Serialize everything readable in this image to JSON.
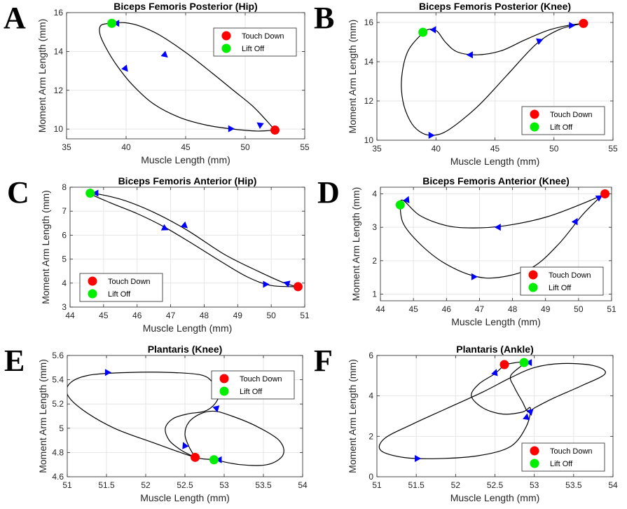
{
  "marker_colors": {
    "touch_down": "#ff0000",
    "lift_off": "#00ee00",
    "arrow": "#0000ff",
    "curve": "#000000"
  },
  "chart_data": [
    {
      "panel": "A",
      "type": "line",
      "title": "Biceps Femoris Posterior (Hip)",
      "xlabel": "Muscle Length (mm)",
      "ylabel": "Moment Arm Length (mm)",
      "xlim": [
        35,
        55
      ],
      "ylim": [
        9.5,
        16
      ],
      "xticks": [
        35,
        40,
        45,
        50,
        55
      ],
      "yticks": [
        10,
        12,
        14,
        16
      ],
      "grid": true,
      "legend_position": "top-right",
      "legend": [
        "Touch Down",
        "Lift Off"
      ],
      "touch_down": [
        52.5,
        9.95
      ],
      "lift_off": [
        38.8,
        15.45
      ],
      "curve": [
        [
          52.5,
          9.95
        ],
        [
          51.7,
          10.5
        ],
        [
          50.6,
          11.2
        ],
        [
          49.0,
          12.0
        ],
        [
          47.2,
          12.9
        ],
        [
          45.0,
          13.95
        ],
        [
          42.8,
          14.85
        ],
        [
          41.2,
          15.3
        ],
        [
          39.9,
          15.48
        ],
        [
          38.8,
          15.45
        ],
        [
          37.9,
          15.35
        ],
        [
          37.8,
          14.9
        ],
        [
          38.3,
          14.2
        ],
        [
          39.2,
          13.3
        ],
        [
          40.5,
          12.3
        ],
        [
          42.3,
          11.3
        ],
        [
          44.5,
          10.6
        ],
        [
          46.8,
          10.2
        ],
        [
          49.0,
          10.0
        ],
        [
          51.0,
          9.9
        ],
        [
          52.5,
          9.95
        ]
      ],
      "arrows": [
        [
          39.3,
          15.45,
          -1,
          0
        ],
        [
          43.2,
          13.85,
          0.7,
          -0.6
        ],
        [
          39.9,
          13.15,
          0.6,
          -0.75
        ],
        [
          48.7,
          10.02,
          1,
          0
        ],
        [
          51.3,
          10.2,
          -0.7,
          0.5
        ]
      ]
    },
    {
      "panel": "B",
      "type": "line",
      "title": "Biceps Femoris Posterior (Knee)",
      "xlabel": "Muscle Length (mm)",
      "ylabel": "Moment Arm Length (mm)",
      "xlim": [
        35,
        55
      ],
      "ylim": [
        10,
        16.5
      ],
      "xticks": [
        35,
        40,
        45,
        50,
        55
      ],
      "yticks": [
        10,
        12,
        14,
        16
      ],
      "grid": true,
      "legend_position": "bottom-right",
      "legend": [
        "Touch Down",
        "Lift Off"
      ],
      "touch_down": [
        52.5,
        15.95
      ],
      "lift_off": [
        38.9,
        15.5
      ],
      "curve": [
        [
          52.5,
          15.95
        ],
        [
          51.2,
          15.85
        ],
        [
          49.5,
          15.6
        ],
        [
          47.5,
          15.1
        ],
        [
          45.5,
          14.55
        ],
        [
          43.5,
          14.35
        ],
        [
          41.8,
          14.5
        ],
        [
          40.8,
          15.0
        ],
        [
          40.1,
          15.55
        ],
        [
          39.4,
          15.65
        ],
        [
          38.7,
          15.35
        ],
        [
          37.6,
          14.5
        ],
        [
          37.1,
          13.2
        ],
        [
          37.2,
          12.0
        ],
        [
          37.8,
          11.0
        ],
        [
          38.6,
          10.45
        ],
        [
          39.6,
          10.25
        ],
        [
          41.0,
          10.5
        ],
        [
          43.5,
          11.7
        ],
        [
          46.0,
          13.3
        ],
        [
          48.5,
          14.9
        ],
        [
          50.5,
          15.65
        ],
        [
          52.5,
          15.95
        ]
      ],
      "arrows": [
        [
          51.4,
          15.85,
          1,
          0
        ],
        [
          48.7,
          15.05,
          1,
          0.4
        ],
        [
          43.0,
          14.35,
          -1,
          0
        ],
        [
          39.8,
          15.6,
          0.5,
          0.8
        ],
        [
          39.5,
          10.25,
          1,
          0
        ]
      ]
    },
    {
      "panel": "C",
      "type": "line",
      "title": "Biceps Femoris Anterior (Hip)",
      "xlabel": "Muscle Length (mm)",
      "ylabel": "Moment Arm Length (mm)",
      "xlim": [
        44,
        51
      ],
      "ylim": [
        3,
        8
      ],
      "xticks": [
        44,
        45,
        46,
        47,
        48,
        49,
        50,
        51
      ],
      "yticks": [
        3,
        4,
        5,
        6,
        7,
        8
      ],
      "grid": true,
      "legend_position": "bottom-left",
      "legend": [
        "Touch Down",
        "Lift Off"
      ],
      "touch_down": [
        50.8,
        3.85
      ],
      "lift_off": [
        44.6,
        7.75
      ],
      "curve": [
        [
          50.8,
          3.85
        ],
        [
          50.4,
          4.0
        ],
        [
          49.6,
          4.5
        ],
        [
          48.6,
          5.2
        ],
        [
          47.5,
          6.2
        ],
        [
          46.5,
          6.95
        ],
        [
          45.5,
          7.5
        ],
        [
          44.6,
          7.75
        ],
        [
          45.2,
          7.35
        ],
        [
          46.0,
          6.9
        ],
        [
          46.8,
          6.35
        ],
        [
          47.7,
          5.6
        ],
        [
          48.5,
          4.9
        ],
        [
          49.3,
          4.25
        ],
        [
          50.0,
          3.9
        ],
        [
          50.8,
          3.85
        ]
      ],
      "arrows": [
        [
          44.8,
          7.75,
          -1,
          0
        ],
        [
          47.4,
          6.42,
          0.7,
          -0.6
        ],
        [
          46.8,
          6.3,
          1,
          -0.5
        ],
        [
          49.8,
          3.95,
          1,
          0
        ],
        [
          50.5,
          3.98,
          -1,
          0.3
        ]
      ]
    },
    {
      "panel": "D",
      "type": "line",
      "title": "Biceps Femoris Anterior (Knee)",
      "xlabel": "Muscle Length (mm)",
      "ylabel": "Moment Arm Length (mm)",
      "xlim": [
        44,
        51
      ],
      "ylim": [
        0.8,
        4.2
      ],
      "xticks": [
        44,
        45,
        46,
        47,
        48,
        49,
        50,
        51
      ],
      "yticks": [
        1,
        2,
        3,
        4
      ],
      "grid": true,
      "legend_position": "bottom-right",
      "legend": [
        "Touch Down",
        "Lift Off"
      ],
      "touch_down": [
        50.8,
        4.0
      ],
      "lift_off": [
        44.6,
        3.67
      ],
      "curve": [
        [
          50.8,
          4.0
        ],
        [
          50.1,
          3.7
        ],
        [
          49.0,
          3.3
        ],
        [
          47.8,
          3.05
        ],
        [
          46.8,
          2.98
        ],
        [
          46.0,
          3.05
        ],
        [
          45.2,
          3.35
        ],
        [
          44.7,
          3.8
        ],
        [
          44.6,
          3.67
        ],
        [
          44.7,
          3.1
        ],
        [
          45.2,
          2.5
        ],
        [
          45.9,
          1.95
        ],
        [
          46.8,
          1.55
        ],
        [
          47.6,
          1.5
        ],
        [
          48.6,
          1.8
        ],
        [
          49.4,
          2.5
        ],
        [
          50.1,
          3.35
        ],
        [
          50.6,
          3.85
        ],
        [
          50.8,
          4.0
        ]
      ],
      "arrows": [
        [
          50.6,
          3.88,
          1,
          0.6
        ],
        [
          47.6,
          3.0,
          -1,
          0
        ],
        [
          44.8,
          3.8,
          0.4,
          0.9
        ],
        [
          46.8,
          1.52,
          1,
          0
        ],
        [
          49.9,
          3.15,
          0.5,
          0.9
        ]
      ]
    },
    {
      "panel": "E",
      "type": "line",
      "title": "Plantaris (Knee)",
      "xlabel": "Muscle Length (mm)",
      "ylabel": "Moment Arm Length (mm)",
      "xlim": [
        51,
        54
      ],
      "ylim": [
        4.6,
        5.6
      ],
      "xticks": [
        51,
        51.5,
        52,
        52.5,
        53,
        53.5,
        54
      ],
      "yticks": [
        4.6,
        4.8,
        5.0,
        5.2,
        5.4,
        5.6
      ],
      "grid": true,
      "legend_position": "top-right",
      "legend": [
        "Touch Down",
        "Lift Off"
      ],
      "touch_down": [
        52.63,
        4.76
      ],
      "lift_off": [
        52.87,
        4.74
      ],
      "curve": [
        [
          52.63,
          4.76
        ],
        [
          52.45,
          4.82
        ],
        [
          52.3,
          4.9
        ],
        [
          52.25,
          5.0
        ],
        [
          52.35,
          5.08
        ],
        [
          52.55,
          5.12
        ],
        [
          52.75,
          5.14
        ],
        [
          52.88,
          5.2
        ],
        [
          52.93,
          5.28
        ],
        [
          52.85,
          5.38
        ],
        [
          52.7,
          5.44
        ],
        [
          52.3,
          5.46
        ],
        [
          51.8,
          5.46
        ],
        [
          51.3,
          5.44
        ],
        [
          51.05,
          5.38
        ],
        [
          51.0,
          5.28
        ],
        [
          51.2,
          5.15
        ],
        [
          51.6,
          5.0
        ],
        [
          52.1,
          4.88
        ],
        [
          52.63,
          4.76
        ],
        [
          52.87,
          4.74
        ],
        [
          53.2,
          4.7
        ],
        [
          53.55,
          4.7
        ],
        [
          53.75,
          4.78
        ],
        [
          53.7,
          4.9
        ],
        [
          53.4,
          5.02
        ],
        [
          53.1,
          5.1
        ],
        [
          52.88,
          5.14
        ],
        [
          52.7,
          5.12
        ],
        [
          52.55,
          5.05
        ],
        [
          52.5,
          4.95
        ],
        [
          52.55,
          4.85
        ],
        [
          52.63,
          4.76
        ]
      ],
      "arrows": [
        [
          51.5,
          5.46,
          1,
          0
        ],
        [
          52.9,
          5.17,
          0.2,
          -0.9
        ],
        [
          52.5,
          4.85,
          -0.4,
          0.9
        ],
        [
          52.95,
          4.74,
          -1,
          0
        ]
      ]
    },
    {
      "panel": "F",
      "type": "line",
      "title": "Plantaris (Ankle)",
      "xlabel": "Muscle Length (mm)",
      "ylabel": "Moment Arm Length (mm)",
      "xlim": [
        51,
        54
      ],
      "ylim": [
        0,
        6
      ],
      "xticks": [
        51,
        51.5,
        52,
        52.5,
        53,
        53.5,
        54
      ],
      "yticks": [
        0,
        2,
        4,
        6
      ],
      "grid": true,
      "legend_position": "bottom-right",
      "legend": [
        "Touch Down",
        "Lift Off"
      ],
      "touch_down": [
        52.62,
        5.55
      ],
      "lift_off": [
        52.87,
        5.65
      ],
      "curve": [
        [
          52.62,
          5.55
        ],
        [
          52.5,
          5.1
        ],
        [
          52.3,
          4.6
        ],
        [
          52.2,
          4.0
        ],
        [
          52.35,
          3.4
        ],
        [
          52.6,
          3.1
        ],
        [
          52.85,
          3.2
        ],
        [
          52.95,
          3.4
        ],
        [
          52.9,
          2.5
        ],
        [
          52.7,
          1.5
        ],
        [
          52.3,
          1.05
        ],
        [
          51.8,
          0.9
        ],
        [
          51.35,
          0.95
        ],
        [
          51.05,
          1.3
        ],
        [
          51.1,
          1.9
        ],
        [
          51.45,
          2.6
        ],
        [
          51.9,
          3.4
        ],
        [
          52.35,
          4.2
        ],
        [
          52.7,
          4.9
        ],
        [
          53.0,
          5.4
        ],
        [
          53.35,
          5.6
        ],
        [
          53.75,
          5.5
        ],
        [
          53.9,
          5.1
        ],
        [
          53.6,
          4.5
        ],
        [
          53.25,
          3.9
        ],
        [
          53.0,
          3.4
        ],
        [
          52.92,
          3.2
        ],
        [
          52.85,
          3.7
        ],
        [
          52.75,
          4.4
        ],
        [
          52.7,
          5.0
        ],
        [
          52.87,
          5.65
        ],
        [
          52.62,
          5.55
        ]
      ],
      "arrows": [
        [
          51.5,
          0.9,
          1,
          0
        ],
        [
          52.9,
          2.9,
          0.15,
          0.9
        ],
        [
          52.95,
          3.25,
          0.2,
          -0.9
        ],
        [
          52.5,
          5.1,
          0.3,
          0.9
        ],
        [
          52.95,
          5.65,
          -1,
          0
        ]
      ]
    }
  ]
}
